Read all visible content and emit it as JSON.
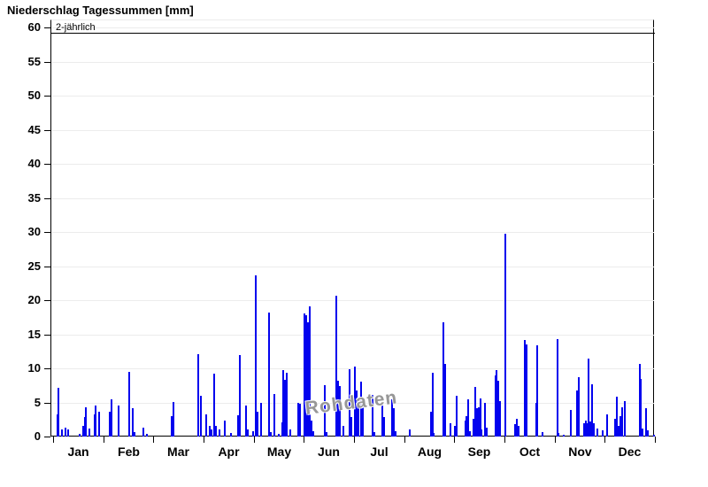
{
  "title": "Niederschlag Tagessummen [mm]",
  "watermark": "Rohdaten",
  "threshold": {
    "label": "2-jährlich",
    "value": 59.2
  },
  "colors": {
    "bar": "#0202ee",
    "grid": "#ececec",
    "axis": "#000000",
    "watermark": "#979797",
    "background": "#ffffff"
  },
  "chart_data": {
    "type": "bar",
    "title": "Niederschlag Tagessummen [mm]",
    "xlabel": "",
    "ylabel": "",
    "ylim": [
      0,
      60
    ],
    "yticks": [
      0,
      5,
      10,
      15,
      20,
      25,
      30,
      35,
      40,
      45,
      50,
      55,
      60
    ],
    "grid": "horizontal-light",
    "months": [
      "Jan",
      "Feb",
      "Mar",
      "Apr",
      "May",
      "Jun",
      "Jul",
      "Aug",
      "Sep",
      "Oct",
      "Nov",
      "Dec"
    ],
    "month_days": [
      31,
      28,
      31,
      30,
      31,
      30,
      31,
      31,
      30,
      31,
      30,
      31
    ],
    "annotation_line": {
      "label": "2-jährlich",
      "value": 59.2
    },
    "unit": "mm",
    "points_format": [
      "month_1_to_12",
      "day_of_month",
      "value_mm"
    ],
    "points": [
      [
        1,
        3,
        3.3
      ],
      [
        1,
        4,
        7.2
      ],
      [
        1,
        6,
        1.1
      ],
      [
        1,
        8,
        1.3
      ],
      [
        1,
        10,
        1.0
      ],
      [
        1,
        17,
        0.4
      ],
      [
        1,
        19,
        1.6
      ],
      [
        1,
        20,
        2.9
      ],
      [
        1,
        21,
        4.3
      ],
      [
        1,
        23,
        1.2
      ],
      [
        1,
        26,
        3.2
      ],
      [
        1,
        27,
        4.5
      ],
      [
        1,
        29,
        3.7
      ],
      [
        2,
        4,
        3.6
      ],
      [
        2,
        5,
        5.5
      ],
      [
        2,
        9,
        4.6
      ],
      [
        2,
        15,
        9.5
      ],
      [
        2,
        17,
        4.1
      ],
      [
        2,
        18,
        0.6
      ],
      [
        2,
        23,
        1.3
      ],
      [
        2,
        25,
        0.4
      ],
      [
        3,
        12,
        3.0
      ],
      [
        3,
        13,
        5.1
      ],
      [
        3,
        28,
        12.1
      ],
      [
        3,
        30,
        6.0
      ],
      [
        4,
        2,
        3.2
      ],
      [
        4,
        4,
        1.6
      ],
      [
        4,
        5,
        1.0
      ],
      [
        4,
        7,
        9.2
      ],
      [
        4,
        8,
        1.6
      ],
      [
        4,
        10,
        1.0
      ],
      [
        4,
        13,
        2.3
      ],
      [
        4,
        17,
        0.5
      ],
      [
        4,
        21,
        3.1
      ],
      [
        4,
        22,
        11.9
      ],
      [
        4,
        26,
        4.5
      ],
      [
        4,
        27,
        1.1
      ],
      [
        4,
        30,
        0.8
      ],
      [
        5,
        2,
        23.6
      ],
      [
        5,
        3,
        3.6
      ],
      [
        5,
        5,
        4.9
      ],
      [
        5,
        10,
        18.2
      ],
      [
        5,
        11,
        0.6
      ],
      [
        5,
        13,
        6.2
      ],
      [
        5,
        16,
        0.4
      ],
      [
        5,
        18,
        2.1
      ],
      [
        5,
        19,
        9.7
      ],
      [
        5,
        20,
        8.3
      ],
      [
        5,
        21,
        9.4
      ],
      [
        5,
        23,
        1.0
      ],
      [
        5,
        28,
        4.9
      ],
      [
        5,
        29,
        4.8
      ],
      [
        6,
        1,
        18.0
      ],
      [
        6,
        2,
        17.8
      ],
      [
        6,
        3,
        16.7
      ],
      [
        6,
        4,
        19.1
      ],
      [
        6,
        5,
        2.4
      ],
      [
        6,
        6,
        0.8
      ],
      [
        6,
        13,
        7.5
      ],
      [
        6,
        14,
        0.6
      ],
      [
        6,
        20,
        20.7
      ],
      [
        6,
        21,
        8.2
      ],
      [
        6,
        22,
        7.4
      ],
      [
        6,
        24,
        1.5
      ],
      [
        6,
        28,
        9.9
      ],
      [
        6,
        29,
        2.8
      ],
      [
        7,
        1,
        10.2
      ],
      [
        7,
        2,
        6.7
      ],
      [
        7,
        3,
        5.3
      ],
      [
        7,
        5,
        8.0
      ],
      [
        7,
        6,
        5.2
      ],
      [
        7,
        12,
        6.1
      ],
      [
        7,
        13,
        0.6
      ],
      [
        7,
        18,
        4.9
      ],
      [
        7,
        19,
        2.9
      ],
      [
        7,
        24,
        5.4
      ],
      [
        7,
        25,
        4.1
      ],
      [
        7,
        26,
        0.8
      ],
      [
        8,
        4,
        1.0
      ],
      [
        8,
        17,
        3.6
      ],
      [
        8,
        18,
        9.3
      ],
      [
        8,
        19,
        0.5
      ],
      [
        8,
        25,
        16.8
      ],
      [
        8,
        26,
        10.7
      ],
      [
        8,
        29,
        1.9
      ],
      [
        9,
        1,
        1.5
      ],
      [
        9,
        2,
        6.0
      ],
      [
        9,
        7,
        2.3
      ],
      [
        9,
        8,
        3.0
      ],
      [
        9,
        9,
        5.5
      ],
      [
        9,
        10,
        0.8
      ],
      [
        9,
        12,
        2.6
      ],
      [
        9,
        13,
        7.3
      ],
      [
        9,
        14,
        4.1
      ],
      [
        9,
        15,
        4.3
      ],
      [
        9,
        16,
        5.6
      ],
      [
        9,
        17,
        1.0
      ],
      [
        9,
        19,
        4.9
      ],
      [
        9,
        20,
        1.3
      ],
      [
        9,
        25,
        9.0
      ],
      [
        9,
        26,
        9.7
      ],
      [
        9,
        27,
        8.2
      ],
      [
        9,
        28,
        5.2
      ],
      [
        10,
        1,
        29.7
      ],
      [
        10,
        7,
        1.8
      ],
      [
        10,
        8,
        2.6
      ],
      [
        10,
        9,
        1.5
      ],
      [
        10,
        13,
        14.2
      ],
      [
        10,
        14,
        13.5
      ],
      [
        10,
        20,
        4.9
      ],
      [
        10,
        21,
        13.4
      ],
      [
        10,
        24,
        0.6
      ],
      [
        11,
        2,
        14.3
      ],
      [
        11,
        3,
        0.5
      ],
      [
        11,
        6,
        0.3
      ],
      [
        11,
        10,
        3.9
      ],
      [
        11,
        14,
        6.7
      ],
      [
        11,
        15,
        8.7
      ],
      [
        11,
        18,
        2.0
      ],
      [
        11,
        19,
        2.3
      ],
      [
        11,
        20,
        2.0
      ],
      [
        11,
        21,
        11.4
      ],
      [
        11,
        22,
        2.2
      ],
      [
        11,
        23,
        7.7
      ],
      [
        11,
        24,
        2.0
      ],
      [
        11,
        26,
        1.2
      ],
      [
        11,
        29,
        0.9
      ],
      [
        12,
        2,
        3.2
      ],
      [
        12,
        7,
        2.6
      ],
      [
        12,
        8,
        5.9
      ],
      [
        12,
        9,
        1.6
      ],
      [
        12,
        10,
        3.0
      ],
      [
        12,
        11,
        4.3
      ],
      [
        12,
        13,
        5.2
      ],
      [
        12,
        22,
        10.6
      ],
      [
        12,
        23,
        8.5
      ],
      [
        12,
        24,
        1.2
      ],
      [
        12,
        26,
        4.2
      ],
      [
        12,
        27,
        0.9
      ],
      [
        12,
        31,
        0.3
      ]
    ]
  }
}
